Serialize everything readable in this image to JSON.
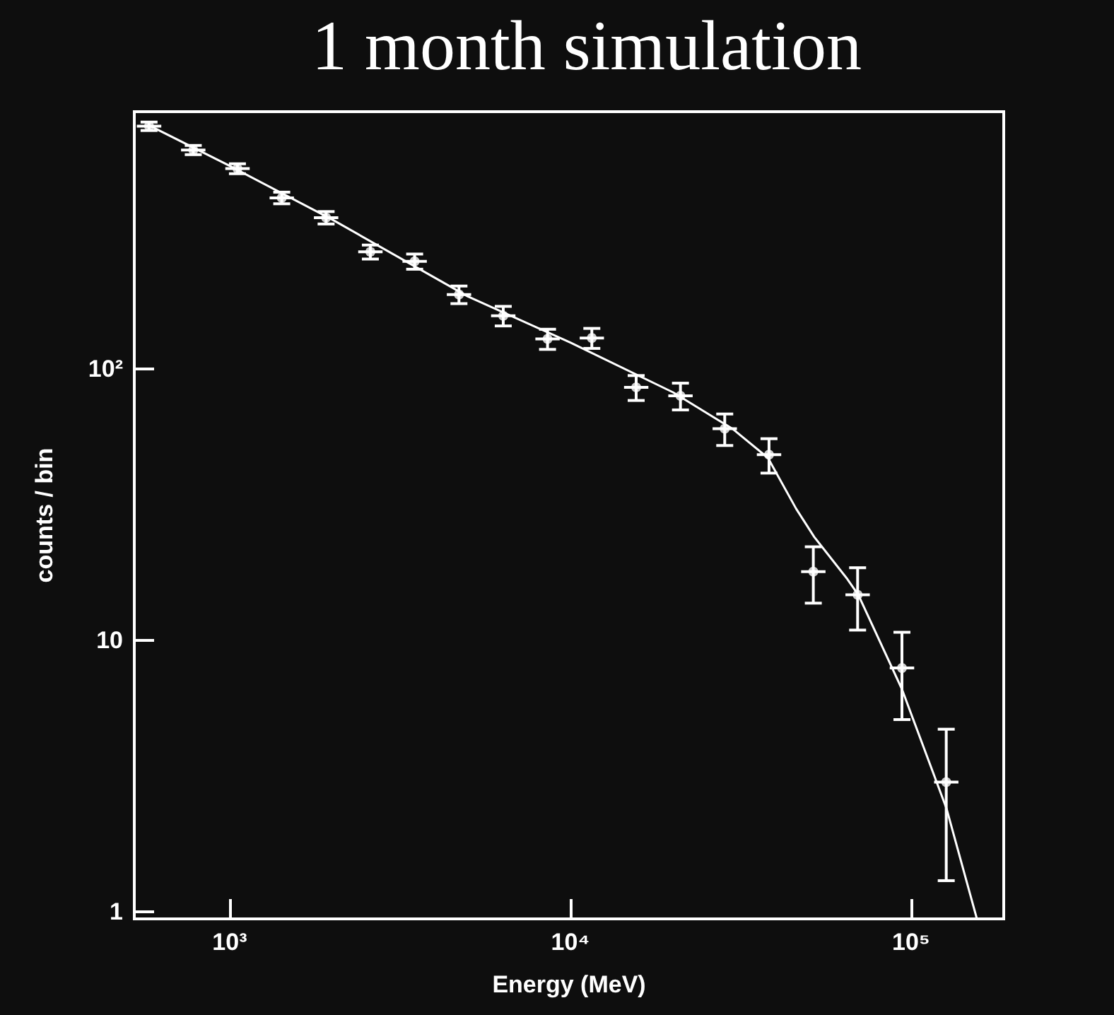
{
  "chart_data": {
    "type": "scatter",
    "title": "1 month simulation",
    "xlabel": "Energy (MeV)",
    "ylabel": "counts / bin",
    "log": "xy",
    "grid": false,
    "xlim": [
      525,
      187000
    ],
    "xticks": [
      {
        "value": 1000,
        "label": "10³"
      },
      {
        "value": 10000,
        "label": "10⁴"
      },
      {
        "value": 100000,
        "label": "10⁵"
      }
    ],
    "ylim": [
      0.94,
      887
    ],
    "yticks": [
      1,
      10,
      {
        "value": 100,
        "label": "10²"
      }
    ],
    "series": [
      {
        "color": "#ffffff",
        "x": [
          580,
          782,
          1054,
          1422,
          1919,
          2588,
          3491,
          4710,
          6353,
          8570,
          11560,
          15600,
          21040,
          28380,
          38280,
          51640,
          69660,
          94000,
          126800
        ],
        "values": [
          784,
          641,
          547,
          427,
          361,
          270,
          249,
          188,
          157,
          129,
          130,
          85.5,
          79.6,
          60.2,
          48.3,
          17.9,
          14.7,
          7.9,
          3.0
        ],
        "errors": [
          28,
          25,
          23,
          21,
          19,
          16,
          16,
          14,
          13,
          11,
          11,
          9,
          9,
          8,
          7,
          4.2,
          3.8,
          2.8,
          1.7
        ],
        "xerrors": [
          [
            534,
            630
          ],
          [
            720,
            849
          ],
          [
            971,
            1145
          ],
          [
            1310,
            1544
          ],
          [
            1767,
            2084
          ],
          [
            2384,
            2811
          ],
          [
            3215,
            3791
          ],
          [
            4338,
            5115
          ],
          [
            5851,
            6899
          ],
          [
            7893,
            9307
          ],
          [
            10650,
            12550
          ],
          [
            14370,
            16940
          ],
          [
            19380,
            22850
          ],
          [
            26140,
            30820
          ],
          [
            35260,
            41570
          ],
          [
            47560,
            56080
          ],
          [
            64160,
            75650
          ],
          [
            86570,
            102100
          ],
          [
            116800,
            137700
          ]
        ]
      },
      {
        "type": "line",
        "color": "#ffffff",
        "line_style": "solid",
        "x": [
          580,
          1000,
          2000,
          5000,
          10000,
          20000,
          30000,
          38000,
          46000,
          52000,
          65000,
          70000,
          94000,
          127000,
          156000
        ],
        "values": [
          790,
          560,
          355,
          185,
          125,
          82,
          60,
          47,
          30.5,
          24,
          16.8,
          14.7,
          6.6,
          2.4,
          0.94
        ]
      }
    ]
  }
}
